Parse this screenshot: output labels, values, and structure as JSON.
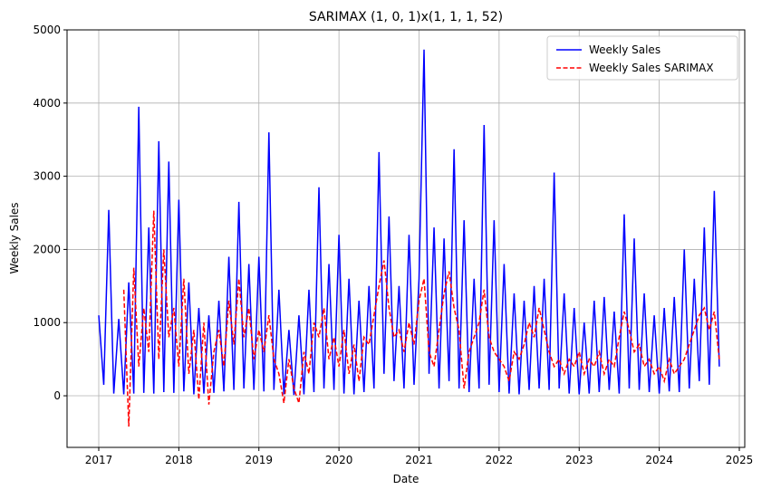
{
  "chart_data": {
    "type": "line",
    "title": "SARIMAX (1, 0, 1)x(1, 1, 1, 52)",
    "x_label": "Date",
    "y_label": "Weekly Sales",
    "x": [
      2017,
      2017.0625,
      2017.125,
      2017.1875,
      2017.25,
      2017.3125,
      2017.375,
      2017.4375,
      2017.5,
      2017.5625,
      2017.625,
      2017.6875,
      2017.75,
      2017.8125,
      2017.875,
      2017.9375,
      2018,
      2018.0625,
      2018.125,
      2018.1875,
      2018.25,
      2018.3125,
      2018.375,
      2018.4375,
      2018.5,
      2018.5625,
      2018.625,
      2018.6875,
      2018.75,
      2018.8125,
      2018.875,
      2018.9375,
      2019,
      2019.0625,
      2019.125,
      2019.1875,
      2019.25,
      2019.3125,
      2019.375,
      2019.4375,
      2019.5,
      2019.5625,
      2019.625,
      2019.6875,
      2019.75,
      2019.8125,
      2019.875,
      2019.9375,
      2020,
      2020.0625,
      2020.125,
      2020.1875,
      2020.25,
      2020.3125,
      2020.375,
      2020.4375,
      2020.5,
      2020.5625,
      2020.625,
      2020.6875,
      2020.75,
      2020.8125,
      2020.875,
      2020.9375,
      2021,
      2021.0625,
      2021.125,
      2021.1875,
      2021.25,
      2021.3125,
      2021.375,
      2021.4375,
      2021.5,
      2021.5625,
      2021.625,
      2021.6875,
      2021.75,
      2021.8125,
      2021.875,
      2021.9375,
      2022,
      2022.0625,
      2022.125,
      2022.1875,
      2022.25,
      2022.3125,
      2022.375,
      2022.4375,
      2022.5,
      2022.5625,
      2022.625,
      2022.6875,
      2022.75,
      2022.8125,
      2022.875,
      2022.9375,
      2023,
      2023.0625,
      2023.125,
      2023.1875,
      2023.25,
      2023.3125,
      2023.375,
      2023.4375,
      2023.5,
      2023.5625,
      2023.625,
      2023.6875,
      2023.75,
      2023.8125,
      2023.875,
      2023.9375,
      2024,
      2024.0625,
      2024.125,
      2024.1875,
      2024.25,
      2024.3125,
      2024.375,
      2024.4375,
      2024.5,
      2024.5625,
      2024.625,
      2024.6875,
      2024.75
    ],
    "series": [
      {
        "name": "Weekly Sales",
        "color": "#0000ff",
        "dash": false,
        "values": [
          1100,
          150,
          2540,
          30,
          1050,
          20,
          1550,
          30,
          3950,
          40,
          2300,
          30,
          3480,
          50,
          3200,
          40,
          2680,
          60,
          1550,
          20,
          1200,
          30,
          1100,
          40,
          1300,
          60,
          1900,
          80,
          2650,
          100,
          1800,
          80,
          1900,
          60,
          3600,
          80,
          1450,
          20,
          900,
          10,
          1100,
          20,
          1450,
          50,
          2850,
          100,
          1800,
          80,
          2200,
          30,
          1600,
          20,
          1300,
          50,
          1500,
          100,
          3330,
          300,
          2450,
          200,
          1500,
          100,
          2200,
          150,
          1600,
          4730,
          300,
          2300,
          100,
          2150,
          200,
          3370,
          100,
          2400,
          50,
          1600,
          100,
          3700,
          150,
          2400,
          50,
          1800,
          30,
          1400,
          20,
          1300,
          80,
          1500,
          100,
          1600,
          80,
          3050,
          100,
          1400,
          30,
          1200,
          20,
          1000,
          30,
          1300,
          50,
          1350,
          80,
          1150,
          30,
          2480,
          100,
          2150,
          80,
          1400,
          50,
          1100,
          30,
          1200,
          60,
          1350,
          50,
          2000,
          100,
          1600,
          200,
          2300,
          150,
          2800,
          400
        ]
      },
      {
        "name": "Weekly Sales SARIMAX",
        "color": "#ff0000",
        "dash": true,
        "values": [
          null,
          null,
          null,
          null,
          null,
          1450,
          -420,
          1750,
          400,
          1200,
          600,
          2530,
          500,
          2000,
          800,
          1200,
          400,
          1600,
          300,
          900,
          -50,
          1000,
          -120,
          600,
          900,
          400,
          1300,
          700,
          1600,
          800,
          1200,
          500,
          900,
          600,
          1100,
          500,
          300,
          -100,
          500,
          100,
          -100,
          600,
          300,
          1000,
          800,
          1200,
          500,
          800,
          400,
          900,
          300,
          700,
          200,
          800,
          700,
          1100,
          1500,
          1850,
          1200,
          800,
          900,
          600,
          1000,
          700,
          1300,
          1600,
          600,
          400,
          900,
          1400,
          1700,
          1200,
          900,
          100,
          600,
          800,
          1000,
          1450,
          800,
          600,
          500,
          400,
          200,
          600,
          500,
          700,
          1000,
          800,
          1200,
          900,
          600,
          400,
          500,
          300,
          500,
          400,
          600,
          300,
          500,
          400,
          600,
          300,
          500,
          400,
          800,
          1150,
          900,
          600,
          700,
          400,
          500,
          300,
          400,
          200,
          500,
          300,
          400,
          500,
          700,
          900,
          1100,
          1200,
          900,
          1150,
          500
        ]
      }
    ],
    "xlim": [
      2016.604,
      2025.068
    ],
    "xticks": [
      2017,
      2018,
      2019,
      2020,
      2021,
      2022,
      2023,
      2024,
      2025
    ],
    "ylim": [
      -705,
      5000
    ],
    "yticks": [
      0,
      1000,
      2000,
      3000,
      4000,
      5000
    ],
    "grid": true,
    "legend": "upper right"
  }
}
